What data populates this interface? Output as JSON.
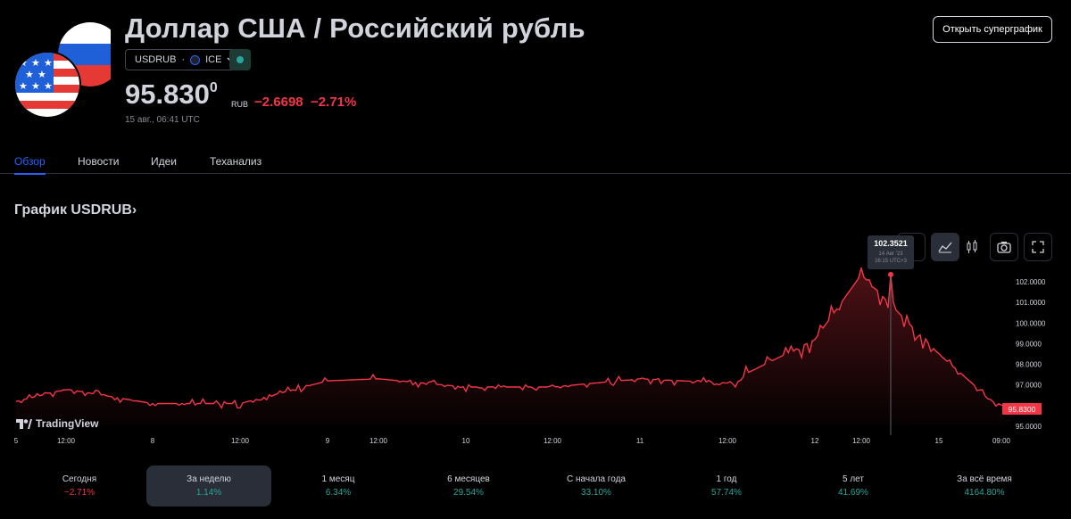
{
  "header": {
    "title": "Доллар США / Российский рубль",
    "symbol": "USDRUB",
    "exchange": "ICE",
    "price_main": "95.830",
    "price_sup": "0",
    "currency": "RUB",
    "change": "−2.6698",
    "change_pct": "−2.71%",
    "timestamp": "15 авг., 06:41 UTC",
    "supergraph_button": "Открыть суперграфик"
  },
  "tabs": [
    {
      "label": "Обзор",
      "active": true
    },
    {
      "label": "Новости"
    },
    {
      "label": "Идеи"
    },
    {
      "label": "Теханализ"
    }
  ],
  "chart_title": "График USDRUB",
  "chart_arrow": "›",
  "tradingview_label": "TradingView",
  "tooltip": {
    "value": "102.3521",
    "date": "14 Авг '23",
    "time": "16:15 UTC+3"
  },
  "chart_data": {
    "type": "area",
    "y_ticks": [
      "102.0000",
      "101.0000",
      "100.0000",
      "99.0000",
      "98.0000",
      "97.0000",
      "96.0000",
      "95.0000"
    ],
    "ylim": [
      95.0,
      102.0
    ],
    "x_ticks": [
      "5",
      "12:00",
      "8",
      "12:00",
      "9",
      "12:00",
      "10",
      "12:00",
      "11",
      "12:00",
      "12",
      "12:00",
      "15",
      "09:00"
    ],
    "last_price_label": "95.8300",
    "line_color": "#f23645",
    "series": [
      {
        "x": [
          "5",
          "12:00",
          "8",
          "12:00",
          "9",
          "12:00",
          "10",
          "12:00",
          "11",
          "12:00",
          "12",
          "12:00",
          "15",
          "09:00"
        ],
        "values": [
          96.2,
          96.8,
          96.1,
          96.1,
          97.2,
          97.3,
          96.9,
          96.9,
          97.3,
          97.1,
          99.2,
          102.35,
          98.5,
          95.83
        ]
      }
    ]
  },
  "periods": [
    {
      "label": "Сегодня",
      "value": "−2.71%",
      "dir": "neg"
    },
    {
      "label": "За неделю",
      "value": "1.14%",
      "dir": "pos",
      "selected": true
    },
    {
      "label": "1 месяц",
      "value": "6.34%",
      "dir": "pos"
    },
    {
      "label": "6 месяцев",
      "value": "29.54%",
      "dir": "pos"
    },
    {
      "label": "С начала года",
      "value": "33.10%",
      "dir": "pos"
    },
    {
      "label": "1 год",
      "value": "57.74%",
      "dir": "pos"
    },
    {
      "label": "5 лет",
      "value": "41.69%",
      "dir": "pos"
    },
    {
      "label": "За всё время",
      "value": "4164.80%",
      "dir": "pos"
    }
  ],
  "colors": {
    "accent": "#2962ff",
    "negative": "#f23645",
    "positive": "#26a69a"
  }
}
